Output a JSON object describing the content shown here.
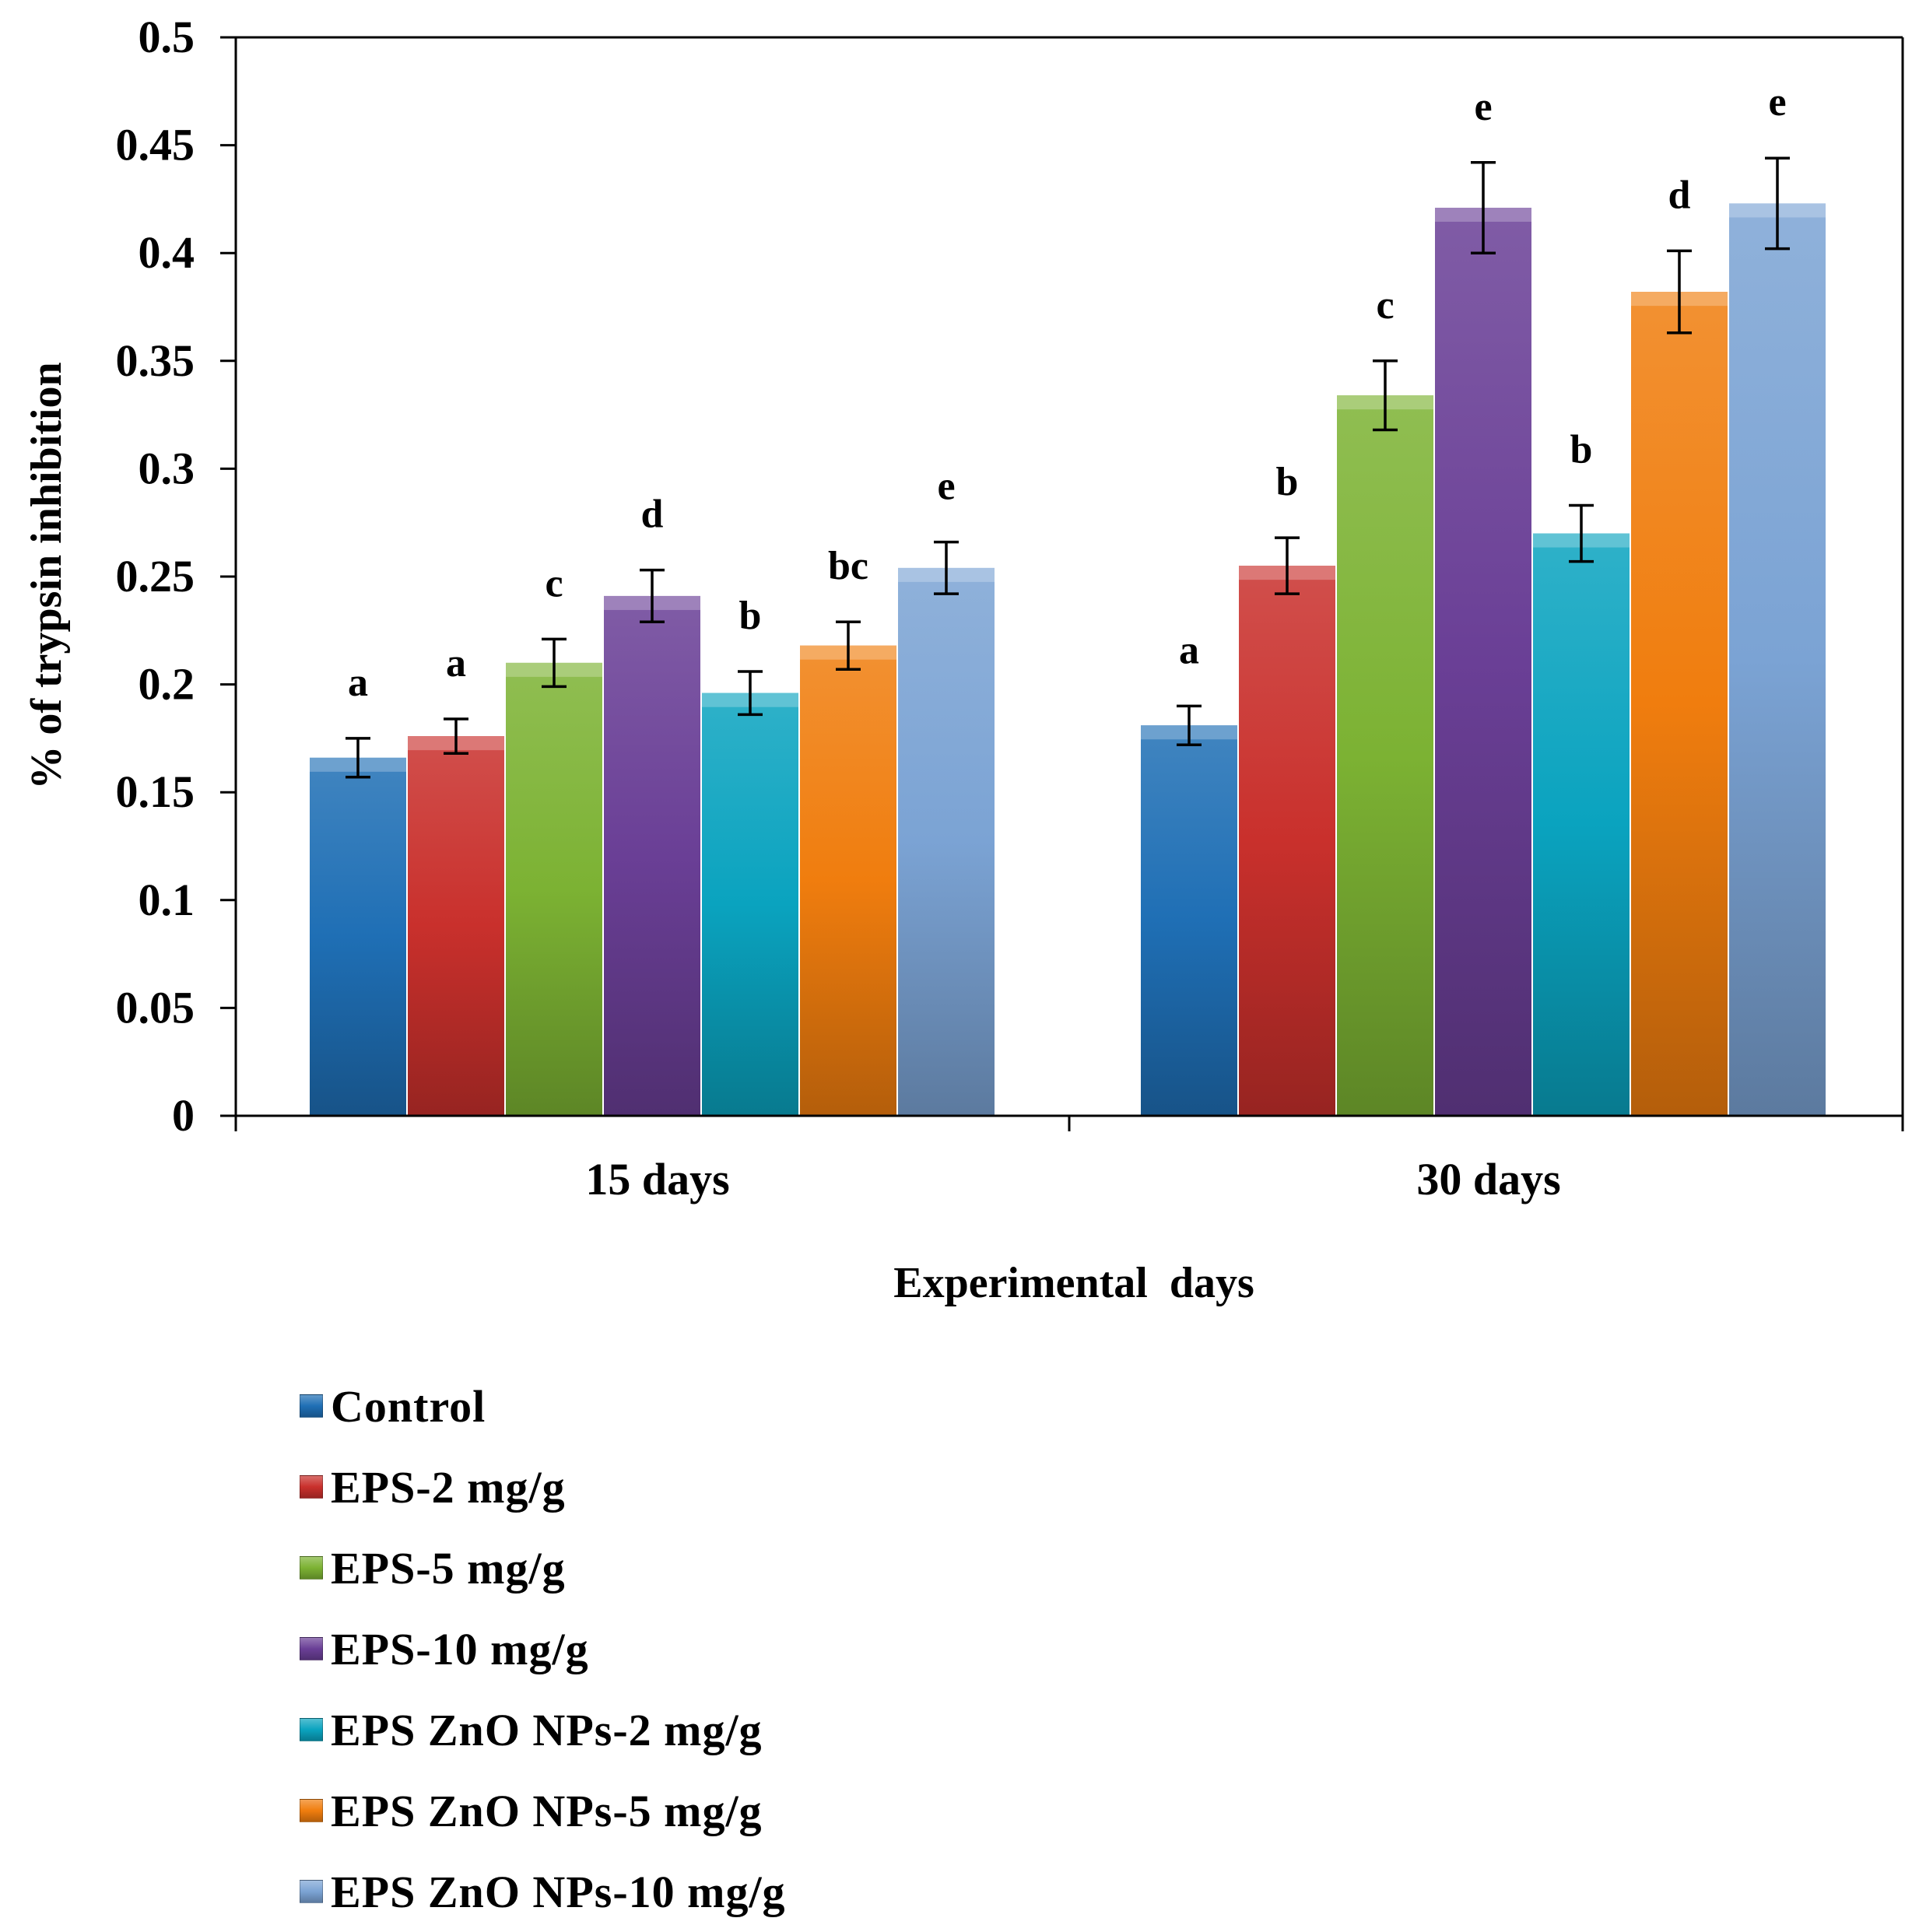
{
  "chart_data": {
    "type": "bar",
    "title": "",
    "xlabel": "Experimental  days",
    "ylabel": "% of trypsin inhibition",
    "ylim": [
      0,
      0.5
    ],
    "yticks": [
      "0",
      "0.05",
      "0.1",
      "0.15",
      "0.2",
      "0.25",
      "0.3",
      "0.35",
      "0.4",
      "0.45",
      "0.5"
    ],
    "categories": [
      "15 days",
      "30 days"
    ],
    "legend_position": "bottom",
    "series": [
      {
        "name": "Control",
        "color": "#1f6fb5",
        "values": [
          0.166,
          0.181
        ],
        "errors": [
          0.009,
          0.009
        ],
        "labels": [
          "a",
          "a"
        ]
      },
      {
        "name": "EPS-2 mg/g",
        "color": "#c9302c",
        "values": [
          0.176,
          0.255
        ],
        "errors": [
          0.008,
          0.013
        ],
        "labels": [
          "a",
          "b"
        ]
      },
      {
        "name": "EPS-5 mg/g",
        "color": "#7cb233",
        "values": [
          0.21,
          0.334
        ],
        "errors": [
          0.011,
          0.016
        ],
        "labels": [
          "c",
          "c"
        ]
      },
      {
        "name": "EPS-10 mg/g",
        "color": "#6a3f96",
        "values": [
          0.241,
          0.421
        ],
        "errors": [
          0.012,
          0.021
        ],
        "labels": [
          "d",
          "e"
        ]
      },
      {
        "name": "EPS ZnO NPs-2 mg/g",
        "color": "#0aa3bf",
        "values": [
          0.196,
          0.27
        ],
        "errors": [
          0.01,
          0.013
        ],
        "labels": [
          "b",
          "b"
        ]
      },
      {
        "name": "EPS ZnO NPs-5 mg/g",
        "color": "#f07d0e",
        "values": [
          0.218,
          0.382
        ],
        "errors": [
          0.011,
          0.019
        ],
        "labels": [
          "bc",
          "d"
        ]
      },
      {
        "name": "EPS ZnO NPs-10 mg/g",
        "color": "#7ba3d4",
        "values": [
          0.254,
          0.423
        ],
        "errors": [
          0.012,
          0.021
        ],
        "labels": [
          "e",
          "e"
        ]
      }
    ]
  }
}
